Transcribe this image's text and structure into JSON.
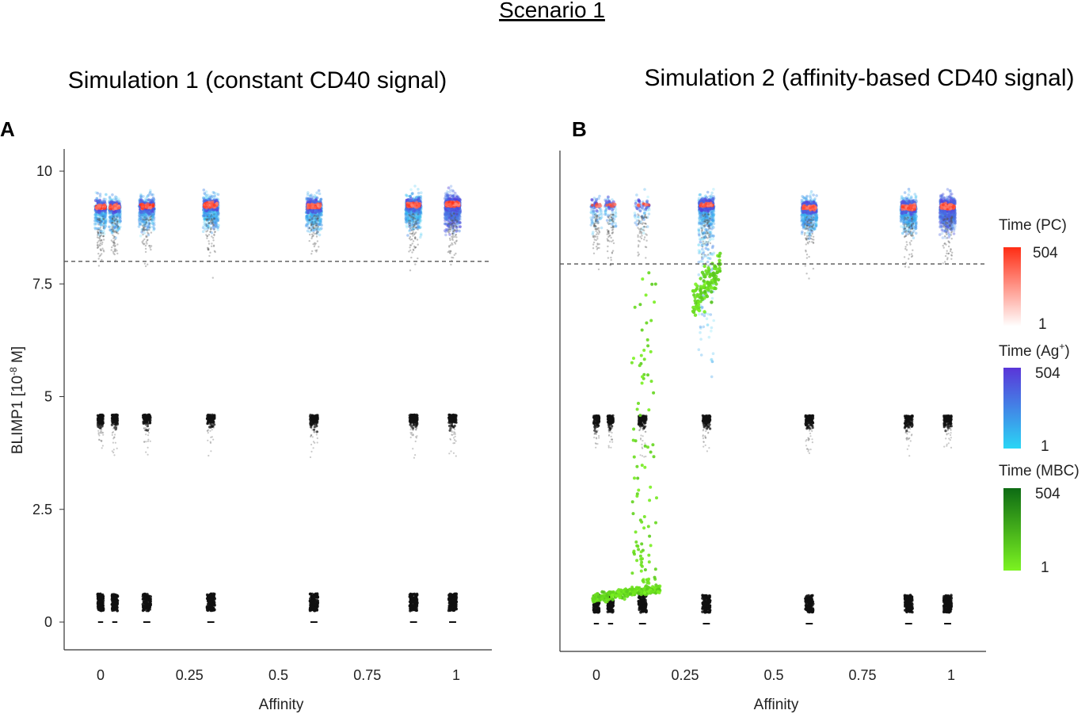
{
  "header": {
    "scenario": "Scenario 1"
  },
  "colors": {
    "pc_low": "#fff4f2",
    "pc_high": "#ff2d14",
    "ag_low": "#2ad6f5",
    "ag_high": "#5a35d8",
    "mbc_low": "#7cf321",
    "mbc_high": "#0d6b14",
    "dead": "#111111",
    "threshold": "#555555"
  },
  "legend": {
    "pc": {
      "title": "Time (PC)",
      "max": "504",
      "min": "1"
    },
    "ag": {
      "title_main": "Time (Ag",
      "title_sup": "+",
      "title_end": ")",
      "max": "504",
      "min": "1"
    },
    "mbc": {
      "title": "Time (MBC)",
      "max": "504",
      "min": "1"
    }
  },
  "chart_data": [
    {
      "panel": "A",
      "title": "Simulation 1 (constant CD40 signal)",
      "type": "scatter",
      "xlabel": "Affinity",
      "ylabel_main": "BLIMP1 [10",
      "ylabel_sup": "-8",
      "ylabel_end": " M]",
      "xlim": [
        -0.1,
        1.1
      ],
      "ylim": [
        -0.6,
        10.3
      ],
      "xticks": [
        0,
        0.25,
        0.5,
        0.75,
        1
      ],
      "xtick_labels": [
        "0",
        "0.25",
        "0.5",
        "0.75",
        "1"
      ],
      "yticks": [
        0,
        2.5,
        5,
        7.5,
        10
      ],
      "ytick_labels": [
        "0",
        "2.5",
        "5",
        "7.5",
        "10"
      ],
      "threshold": 8.0,
      "clusters": [
        {
          "x": 0.0,
          "pc_y": 9.2,
          "ag": 1.0,
          "pc": 0.5,
          "dead": 1.0
        },
        {
          "x": 0.04,
          "pc_y": 9.2,
          "ag": 1.0,
          "pc": 0.5,
          "dead": 1.0
        },
        {
          "x": 0.13,
          "pc_y": 9.22,
          "ag": 1.2,
          "pc": 0.6,
          "dead": 0.9
        },
        {
          "x": 0.31,
          "pc_y": 9.25,
          "ag": 1.6,
          "pc": 1.0,
          "dead": 1.0
        },
        {
          "x": 0.6,
          "pc_y": 9.23,
          "ag": 1.6,
          "pc": 1.0,
          "dead": 1.0
        },
        {
          "x": 0.88,
          "pc_y": 9.25,
          "ag": 1.8,
          "pc": 1.1,
          "dead": 1.1
        },
        {
          "x": 0.99,
          "pc_y": 9.27,
          "ag": 2.6,
          "pc": 1.6,
          "dead": 1.2
        }
      ],
      "mbc": []
    },
    {
      "panel": "B",
      "title": "Simulation 2 (affinity-based CD40 signal)",
      "type": "scatter",
      "xlabel": "Affinity",
      "xlim": [
        -0.1,
        1.1
      ],
      "ylim": [
        -0.6,
        10.3
      ],
      "xticks": [
        0,
        0.25,
        0.5,
        0.75,
        1
      ],
      "xtick_labels": [
        "0",
        "0.25",
        "0.5",
        "0.75",
        "1"
      ],
      "threshold": 7.95,
      "clusters": [
        {
          "x": 0.0,
          "pc_y": 9.25,
          "ag": 0.2,
          "pc": 0.1,
          "dead": 0.9
        },
        {
          "x": 0.04,
          "pc_y": 9.25,
          "ag": 0.2,
          "pc": 0.1,
          "dead": 0.9
        },
        {
          "x": 0.13,
          "pc_y": 9.25,
          "ag": 0.2,
          "pc": 0.1,
          "dead": 0.9
        },
        {
          "x": 0.31,
          "pc_y": 9.25,
          "ag": 1.9,
          "pc": 0.4,
          "dead": 1.0,
          "long_tail": true
        },
        {
          "x": 0.6,
          "pc_y": 9.2,
          "ag": 1.6,
          "pc": 1.0,
          "dead": 1.0
        },
        {
          "x": 0.88,
          "pc_y": 9.2,
          "ag": 1.8,
          "pc": 1.1,
          "dead": 1.0
        },
        {
          "x": 0.99,
          "pc_y": 9.22,
          "ag": 2.6,
          "pc": 1.6,
          "dead": 1.1
        }
      ],
      "mbc": [
        {
          "x_from": -0.01,
          "x_to": 0.09,
          "y_from": 0.55,
          "y_to": 0.7,
          "n": 130,
          "spread": 0.08
        },
        {
          "x_from": 0.08,
          "x_to": 0.18,
          "y_from": 0.7,
          "y_to": 0.75,
          "n": 180,
          "tail_top": 7.9,
          "tail_n": 110
        },
        {
          "x_from": 0.27,
          "x_to": 0.35,
          "y_from": 7.0,
          "y_to": 7.9,
          "n": 120,
          "spread": 0.3
        }
      ]
    }
  ]
}
